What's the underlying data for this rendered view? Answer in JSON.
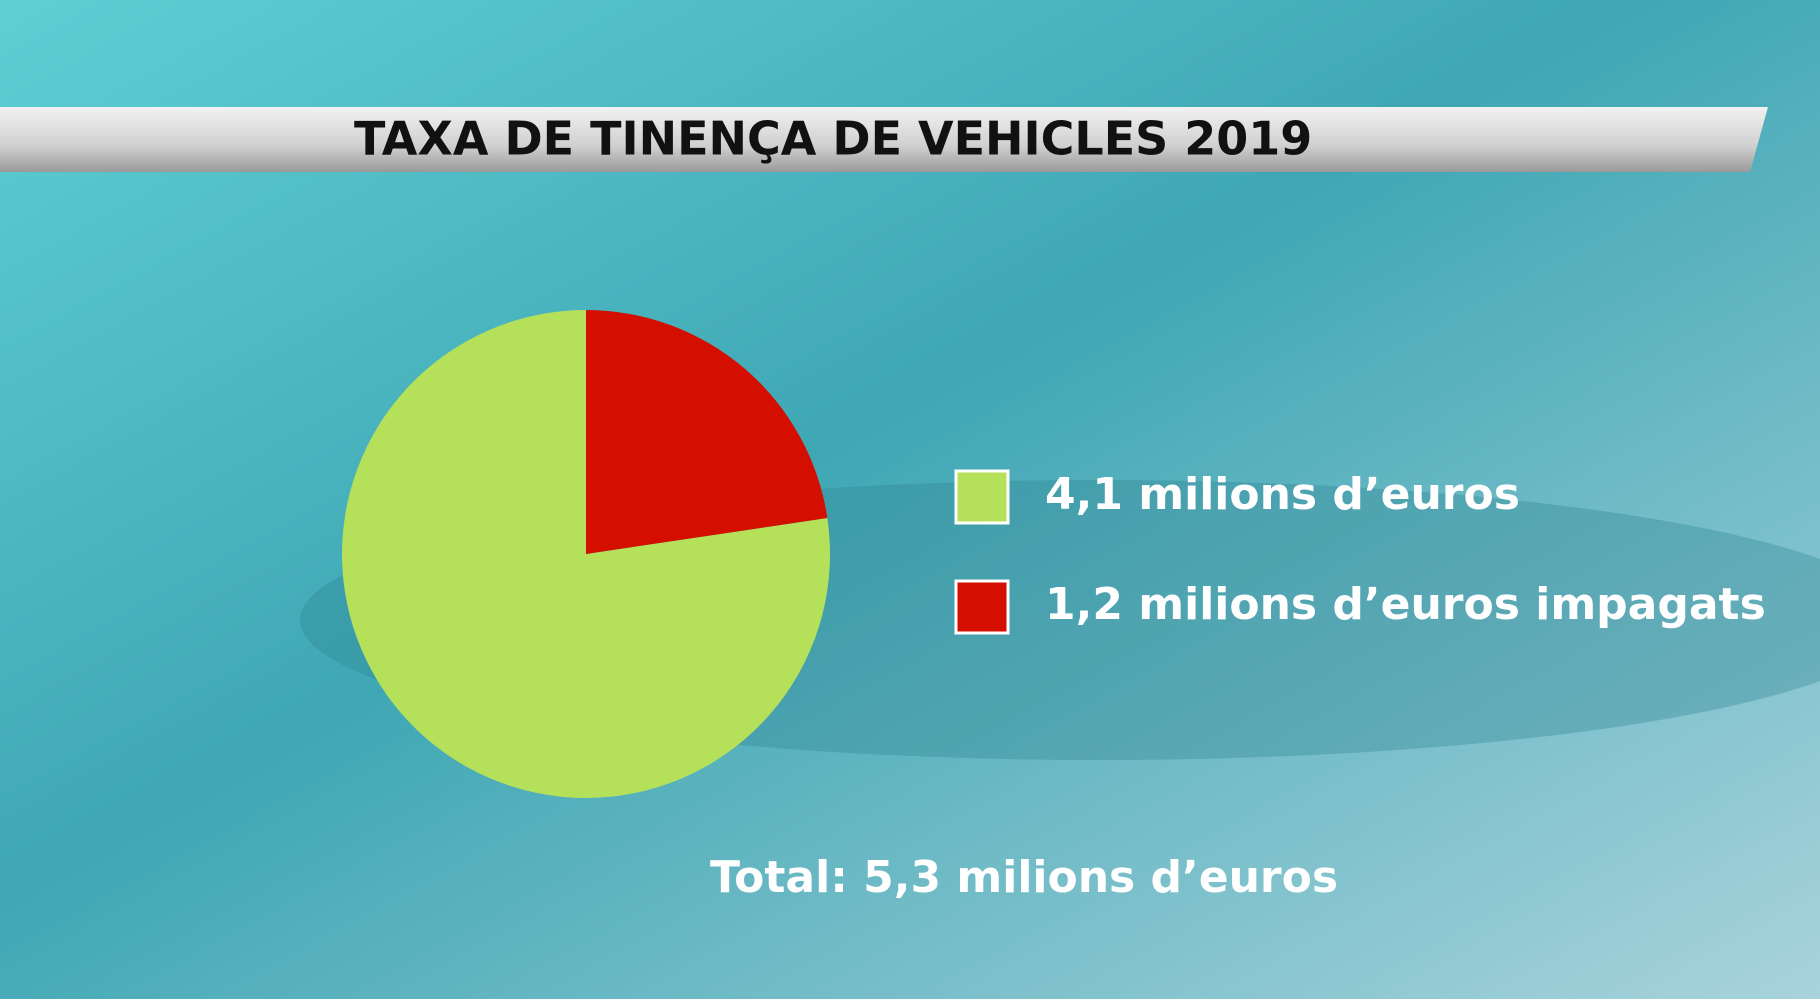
{
  "chart_data": {
    "type": "pie",
    "title": "TAXA DE TINENÇA DE VEHICLES 2019",
    "categories": [
      "4,1 milions d’euros",
      "1,2 milions d’euros impagats"
    ],
    "values": [
      4.1,
      1.2
    ],
    "colors": [
      "#b5e05a",
      "#d40f00"
    ],
    "annotation": "Total: 5,3 milions d’euros"
  }
}
